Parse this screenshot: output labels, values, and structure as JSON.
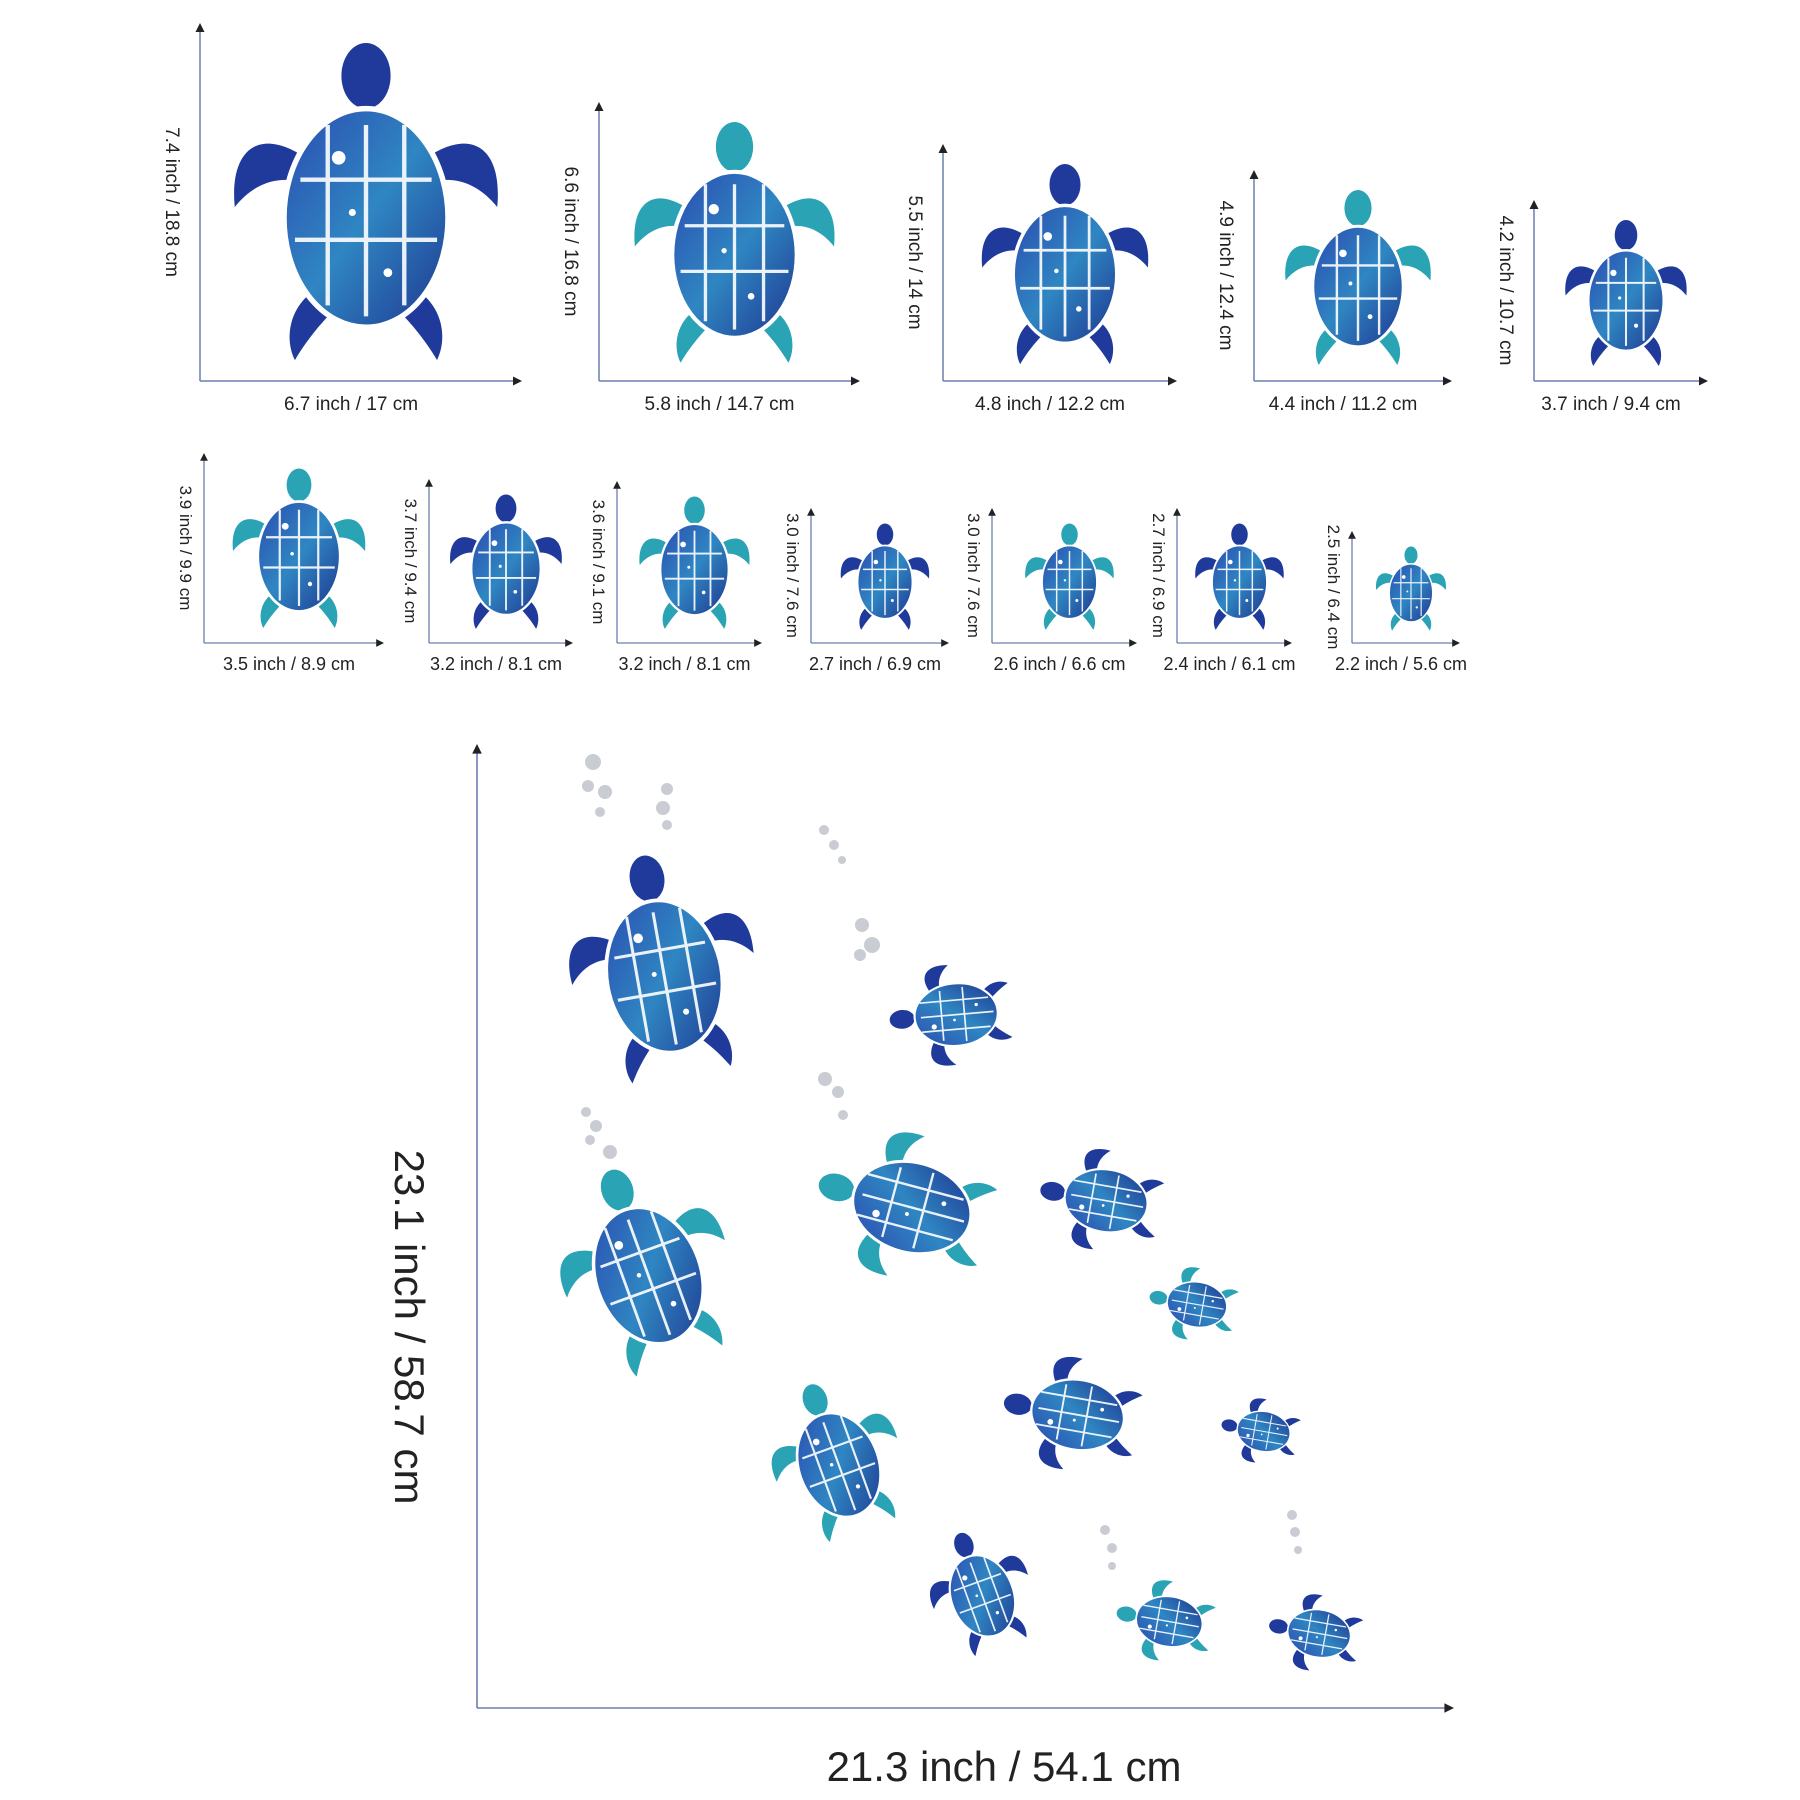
{
  "colors": {
    "dark_blue": "#1f3a9a",
    "teal": "#2aa3b5",
    "axis": "#6a7fb0",
    "bubble": "#c9ccd3"
  },
  "row1": [
    {
      "height": "7.4 inch  /  18.8 cm",
      "width": "6.7 inch  / 17 cm"
    },
    {
      "height": "6.6 inch  /  16.8 cm",
      "width": "5.8 inch   / 14.7 cm"
    },
    {
      "height": "5.5 inch  /  14  cm",
      "width": "4.8 inch    / 12.2 cm"
    },
    {
      "height": "4.9 inch  /  12.4 cm",
      "width": "4.4 inch    / 11.2 cm"
    },
    {
      "height": "4.2 inch  /  10.7  cm",
      "width": "3.7 inch  / 9.4 cm"
    }
  ],
  "row2": [
    {
      "height": "3.9 inch  / 9.9 cm",
      "width": "3.5 inch  / 8.9 cm"
    },
    {
      "height": "3.7 inch  / 9.4 cm",
      "width": "3.2 inch / 8.1 cm"
    },
    {
      "height": "3.6 inch  / 9.1 cm",
      "width": "3.2 inch / 8.1 cm"
    },
    {
      "height": "3.0 inch / 7.6 cm",
      "width": "2.7 inch / 6.9  cm"
    },
    {
      "height": "3.0 inch / 7.6 cm",
      "width": "2.6 inch / 6.6  cm"
    },
    {
      "height": "2.7 inch / 6.9 cm",
      "width": "2.4 inch / 6.1 cm"
    },
    {
      "height": "2.5 inch / 6.4 cm",
      "width": "2.2 inch / 5.6 cm"
    }
  ],
  "overall": {
    "height": "23.1 inch  /  58.7 cm",
    "width": "21.3 inch / 54.1 cm"
  }
}
